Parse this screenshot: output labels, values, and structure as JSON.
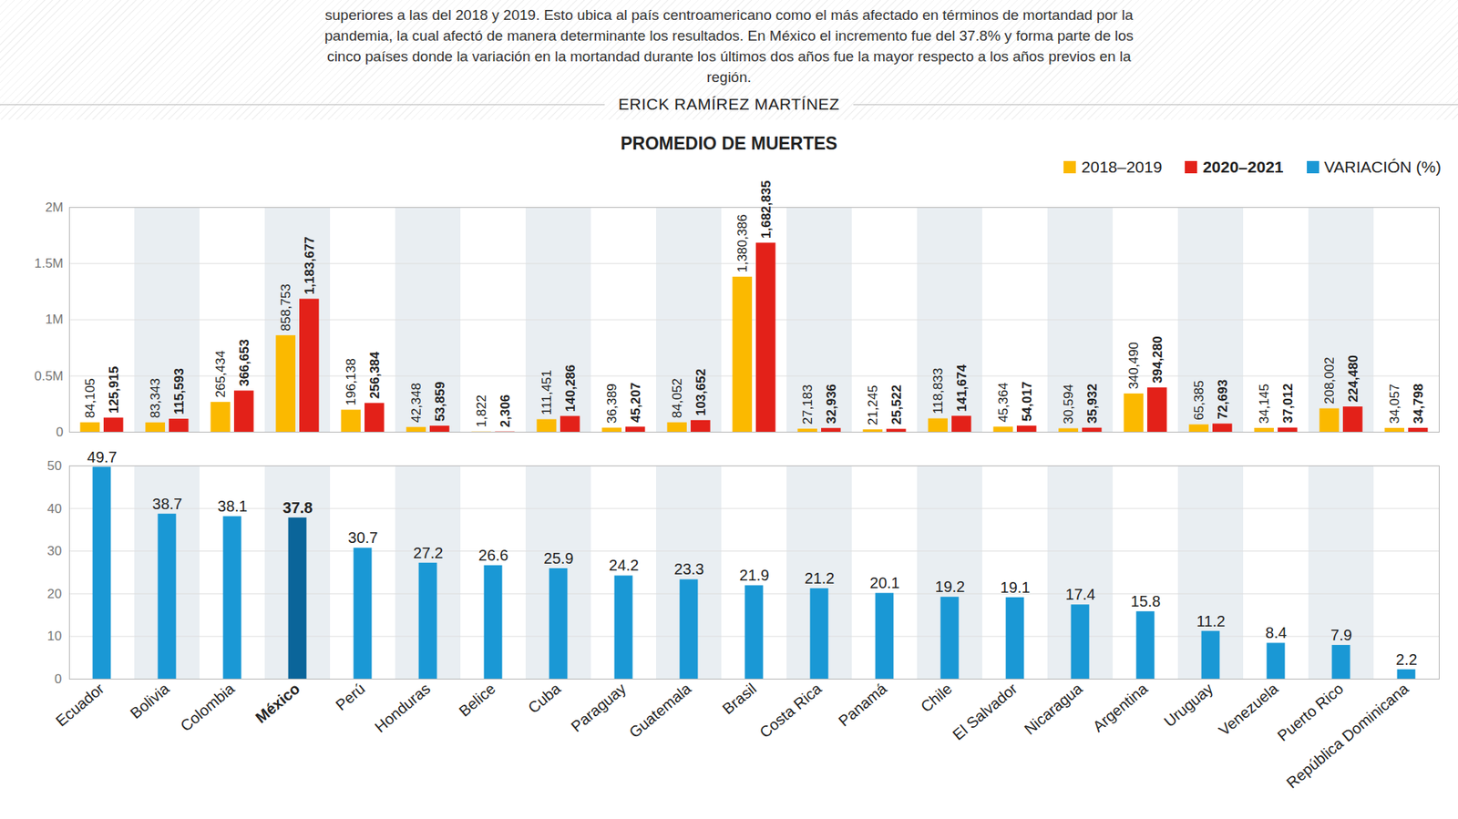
{
  "header": {
    "text": "superiores a las del 2018 y 2019. Esto ubica al país centroamericano como el más afectado en términos de mortandad por la pandemia, la cual afectó de manera determinante los resultados. En México el incremento fue del 37.8% y forma parte de los cinco países donde la variación en la mortandad durante los últimos dos años fue la mayor respecto a los años previos en la región.",
    "byline": "ERICK RAMÍREZ MARTÍNEZ"
  },
  "chart_data": [
    {
      "type": "bar",
      "title": "PROMEDIO DE MUERTES",
      "categories": [
        "Ecuador",
        "Bolivia",
        "Colombia",
        "México",
        "Perú",
        "Honduras",
        "Belice",
        "Cuba",
        "Paraguay",
        "Guatemala",
        "Brasil",
        "Costa Rica",
        "Panamá",
        "Chile",
        "El Salvador",
        "Nicaragua",
        "Argentina",
        "Uruguay",
        "Venezuela",
        "Puerto Rico",
        "República Dominicana"
      ],
      "series": [
        {
          "name": "2018–2019",
          "color": "#fbb900",
          "values": [
            84105,
            83343,
            265434,
            858753,
            196138,
            42348,
            1822,
            111451,
            36389,
            84052,
            1380386,
            27183,
            21245,
            118833,
            45364,
            30594,
            340490,
            65385,
            34145,
            208002,
            34057
          ],
          "value_labels": [
            "84,105",
            "83,343",
            "265,434",
            "858,753",
            "196,138",
            "42,348",
            "1,822",
            "111,451",
            "36,389",
            "84,052",
            "1,380,386",
            "27,183",
            "21,245",
            "118,833",
            "45,364",
            "30,594",
            "340,490",
            "65,385",
            "34,145",
            "208,002",
            "34,057"
          ]
        },
        {
          "name": "2020–2021",
          "color": "#e32119",
          "values": [
            125915,
            115593,
            366653,
            1183677,
            256384,
            53859,
            2306,
            140286,
            45207,
            103652,
            1682835,
            32936,
            25522,
            141674,
            54017,
            35932,
            394280,
            72693,
            37012,
            224480,
            34798
          ],
          "value_labels": [
            "125,915",
            "115,593",
            "366,653",
            "1,183,677",
            "256,384",
            "53,859",
            "2,306",
            "140,286",
            "45,207",
            "103,652",
            "1,682,835",
            "32,936",
            "25,522",
            "141,674",
            "54,017",
            "35,932",
            "394,280",
            "72,693",
            "37,012",
            "224,480",
            "34,798"
          ]
        }
      ],
      "ylim": [
        0,
        2000000
      ],
      "yticks": [
        0,
        {
          "value": 500000,
          "label": "0.5M"
        },
        {
          "value": 1000000,
          "label": "1M"
        },
        {
          "value": 1500000,
          "label": "1.5M"
        },
        {
          "value": 2000000,
          "label": "2M"
        }
      ],
      "grid": true,
      "legend": "top-right",
      "data_labels": true,
      "tick_labels": "y"
    },
    {
      "type": "bar",
      "categories": [
        "Ecuador",
        "Bolivia",
        "Colombia",
        "México",
        "Perú",
        "Honduras",
        "Belice",
        "Cuba",
        "Paraguay",
        "Guatemala",
        "Brasil",
        "Costa Rica",
        "Panamá",
        "Chile",
        "El Salvador",
        "Nicaragua",
        "Argentina",
        "Uruguay",
        "Venezuela",
        "Puerto Rico",
        "República Dominicana"
      ],
      "series": [
        {
          "name": "VARIACIÓN (%)",
          "color": "#1a98d5",
          "colors": [
            "#1a98d5",
            "#1a98d5",
            "#1a98d5",
            "#0b659a",
            "#1a98d5",
            "#1a98d5",
            "#1a98d5",
            "#1a98d5",
            "#1a98d5",
            "#1a98d5",
            "#1a98d5",
            "#1a98d5",
            "#1a98d5",
            "#1a98d5",
            "#1a98d5",
            "#1a98d5",
            "#1a98d5",
            "#1a98d5",
            "#1a98d5",
            "#1a98d5",
            "#1a98d5"
          ],
          "values": [
            49.7,
            38.7,
            38.1,
            37.8,
            30.7,
            27.2,
            26.6,
            25.9,
            24.2,
            23.3,
            21.9,
            21.2,
            20.1,
            19.2,
            19.1,
            17.4,
            15.8,
            11.2,
            8.4,
            7.9,
            2.2
          ]
        }
      ],
      "ylim": [
        0,
        50
      ],
      "yticks": [
        0,
        10,
        20,
        30,
        40,
        50
      ],
      "grid": true,
      "data_labels": true
    }
  ]
}
